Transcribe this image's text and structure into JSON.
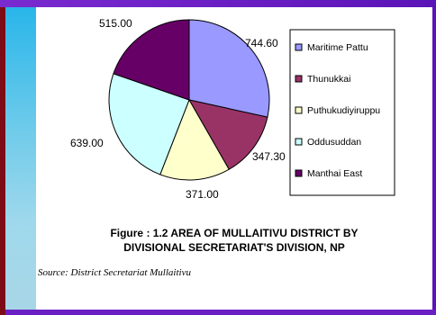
{
  "chart_data": {
    "type": "pie",
    "categories": [
      "Maritime Pattu",
      "Thunukkai",
      "Puthukudiyiruppu",
      "Oddusuddan",
      "Manthai East"
    ],
    "values": [
      744.6,
      347.3,
      371.0,
      639.0,
      515.0
    ],
    "value_labels": [
      "744.60",
      "347.30",
      "371.00",
      "639.00",
      "515.00"
    ],
    "colors": [
      "#9999ff",
      "#993366",
      "#ffffcc",
      "#ccffff",
      "#660066"
    ],
    "legend_position": "right"
  },
  "caption": {
    "line1": "Figure : 1.2  AREA OF MULLAITIVU DISTRICT BY",
    "line2": "DIVISIONAL SECRETARIAT'S DIVISION, NP"
  },
  "source": "Source:  District Secretariat Mullaitivu"
}
